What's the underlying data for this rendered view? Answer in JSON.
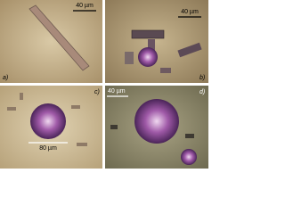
{
  "panels": [
    {
      "letter": "a)",
      "scale": "40 µm"
    },
    {
      "letter": "b)",
      "scale": "40 µm"
    },
    {
      "letter": "c)",
      "scale": "80 µm"
    },
    {
      "letter": "d)",
      "scale": "40 µm"
    }
  ]
}
